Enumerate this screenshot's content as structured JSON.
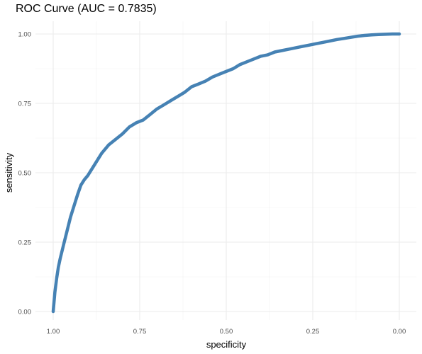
{
  "chart_data": {
    "type": "line",
    "title": "ROC Curve (AUC = 0.7835)",
    "xlabel": "specificity",
    "ylabel": "sensitivity",
    "x_reversed": true,
    "xlim": [
      1.0,
      0.0
    ],
    "ylim": [
      0.0,
      1.0
    ],
    "x_ticks": [
      1.0,
      0.75,
      0.5,
      0.25,
      0.0
    ],
    "x_tick_labels": [
      "1.00",
      "0.75",
      "0.50",
      "0.25",
      "0.00"
    ],
    "y_ticks": [
      0.0,
      0.25,
      0.5,
      0.75,
      1.0
    ],
    "y_tick_labels": [
      "0.00",
      "0.25",
      "0.50",
      "0.75",
      "1.00"
    ],
    "grid": true,
    "line_color": "#4682B4",
    "series": [
      {
        "specificity": [
          1.0,
          0.995,
          0.99,
          0.985,
          0.98,
          0.97,
          0.96,
          0.95,
          0.94,
          0.93,
          0.92,
          0.91,
          0.9,
          0.88,
          0.86,
          0.84,
          0.82,
          0.8,
          0.78,
          0.76,
          0.74,
          0.72,
          0.7,
          0.68,
          0.66,
          0.64,
          0.62,
          0.6,
          0.58,
          0.56,
          0.54,
          0.52,
          0.5,
          0.48,
          0.46,
          0.44,
          0.42,
          0.4,
          0.38,
          0.36,
          0.34,
          0.32,
          0.3,
          0.28,
          0.26,
          0.24,
          0.22,
          0.2,
          0.18,
          0.16,
          0.14,
          0.12,
          0.1,
          0.08,
          0.06,
          0.04,
          0.02,
          0.0
        ],
        "sensitivity": [
          0.0,
          0.07,
          0.12,
          0.16,
          0.19,
          0.24,
          0.29,
          0.34,
          0.38,
          0.42,
          0.455,
          0.475,
          0.49,
          0.53,
          0.57,
          0.6,
          0.62,
          0.64,
          0.665,
          0.68,
          0.69,
          0.71,
          0.73,
          0.745,
          0.76,
          0.775,
          0.79,
          0.81,
          0.82,
          0.83,
          0.845,
          0.855,
          0.865,
          0.875,
          0.89,
          0.9,
          0.91,
          0.92,
          0.925,
          0.935,
          0.94,
          0.945,
          0.95,
          0.955,
          0.96,
          0.965,
          0.97,
          0.975,
          0.98,
          0.984,
          0.988,
          0.992,
          0.995,
          0.997,
          0.998,
          0.999,
          1.0,
          1.0
        ]
      }
    ]
  }
}
